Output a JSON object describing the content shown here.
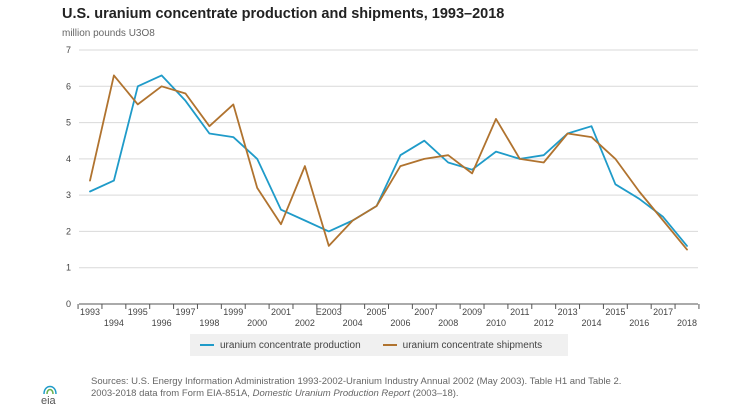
{
  "header": {
    "title": "U.S. uranium concentrate production and shipments, 1993–2018",
    "unit": "million pounds U3O8"
  },
  "legend": {
    "production": "uranium concentrate production",
    "shipments": "uranium concentrate shipments"
  },
  "footer": {
    "source_line1": "Sources: U.S. Energy Information Administration 1993-2002-Uranium Industry Annual 2002 (May 2003). Table H1 and Table 2.",
    "source_line2_prefix": "2003-2018 data from Form EIA-851A, ",
    "source_line2_italic": "Domestic Uranium Production Report",
    "source_line2_suffix": " (2003–18).",
    "logo_text": "eia"
  },
  "colors": {
    "production": "#1f9bc9",
    "shipments": "#b0732f",
    "grid": "#d9d9d9",
    "axis": "#555555"
  },
  "chart_data": {
    "type": "line",
    "title": "U.S. uranium concentrate production and shipments, 1993–2018",
    "ylabel": "million pounds U3O8",
    "x": [
      "1993",
      "1994",
      "1995",
      "1996",
      "1997",
      "1998",
      "1999",
      "2000",
      "2001",
      "2002",
      "E2003",
      "2004",
      "2005",
      "2006",
      "2007",
      "2008",
      "2009",
      "2010",
      "2011",
      "2012",
      "2013",
      "2014",
      "2015",
      "2016",
      "2017",
      "2018"
    ],
    "ylim": [
      0,
      7
    ],
    "yticks": [
      0,
      1,
      2,
      3,
      4,
      5,
      6,
      7
    ],
    "grid": true,
    "legend_position": "bottom",
    "series": [
      {
        "name": "uranium concentrate production",
        "color": "#1f9bc9",
        "values": [
          3.1,
          3.4,
          6.0,
          6.3,
          5.6,
          4.7,
          4.6,
          4.0,
          2.6,
          2.3,
          2.0,
          2.3,
          2.7,
          4.1,
          4.5,
          3.9,
          3.7,
          4.2,
          4.0,
          4.1,
          4.7,
          4.9,
          3.3,
          2.9,
          2.4,
          1.6
        ]
      },
      {
        "name": "uranium concentrate shipments",
        "color": "#b0732f",
        "values": [
          3.4,
          6.3,
          5.5,
          6.0,
          5.8,
          4.9,
          5.5,
          3.2,
          2.2,
          3.8,
          1.6,
          2.3,
          2.7,
          3.8,
          4.0,
          4.1,
          3.6,
          5.1,
          4.0,
          3.9,
          4.7,
          4.6,
          4.0,
          3.1,
          2.3,
          1.5
        ]
      }
    ]
  }
}
